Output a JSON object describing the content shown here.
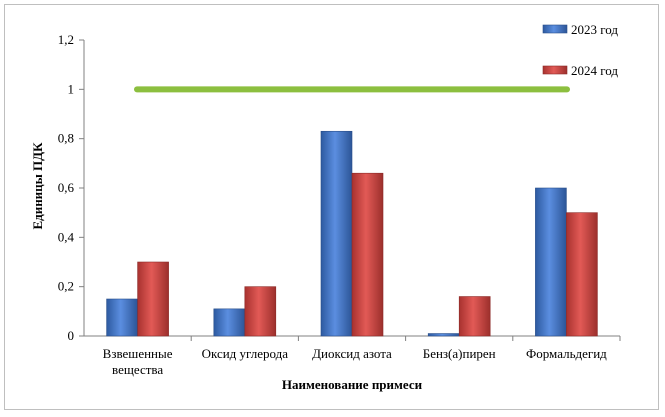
{
  "chart_data": {
    "type": "bar",
    "xlabel": "Наименование примеси",
    "ylabel": "Единицы ПДК",
    "ylim": [
      0,
      1.2
    ],
    "yticks": [
      "0",
      "0,2",
      "0,4",
      "0,6",
      "0,8",
      "1",
      "1,2"
    ],
    "categories": [
      [
        "Взвешенные",
        "вещества"
      ],
      [
        "Оксид углерода"
      ],
      [
        "Диоксид азота"
      ],
      [
        "Бенз(а)пирен"
      ],
      [
        "Формальдегид"
      ]
    ],
    "series": [
      {
        "name": "2023 год",
        "color": "#4472c4",
        "values": [
          0.15,
          0.11,
          0.83,
          0.01,
          0.6
        ]
      },
      {
        "name": "2024 год",
        "color": "#c0504d",
        "values": [
          0.3,
          0.2,
          0.66,
          0.16,
          0.5
        ]
      }
    ],
    "reference_line": {
      "value": 1.0,
      "color": "#8cbf3f"
    },
    "legend_position": "top-right",
    "grid": false
  }
}
